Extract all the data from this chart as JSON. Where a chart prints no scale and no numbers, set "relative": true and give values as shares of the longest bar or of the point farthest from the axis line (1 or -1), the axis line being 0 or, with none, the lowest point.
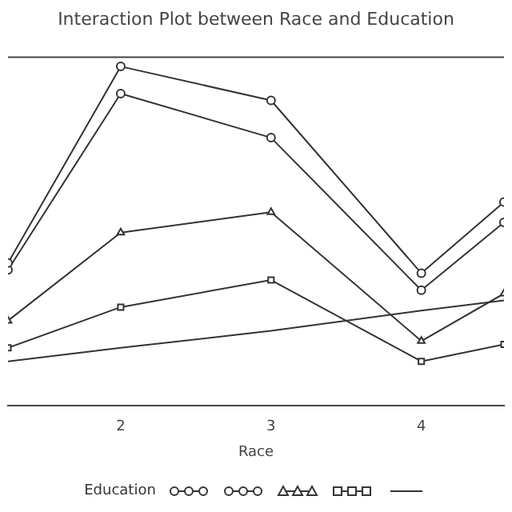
{
  "chart_data": {
    "type": "line",
    "title": "Interaction Plot between Race and Education",
    "xlabel": "Race",
    "legend_title": "Education",
    "relative": true,
    "line_style": "solid",
    "grid": false,
    "x": [
      1.25,
      2,
      3,
      4,
      4.55
    ],
    "xlim": [
      1.25,
      4.55
    ],
    "xticks": [
      2,
      3,
      4
    ],
    "series": [
      {
        "color": "#333333",
        "marker": "circle",
        "values": [
          0.42,
          1.0,
          0.9,
          0.39,
          0.6
        ]
      },
      {
        "color": "#333333",
        "marker": "circle",
        "values": [
          0.4,
          0.92,
          0.79,
          0.34,
          0.54
        ]
      },
      {
        "color": "#333333",
        "marker": "triangle",
        "values": [
          0.25,
          0.51,
          0.57,
          0.19,
          0.33
        ]
      },
      {
        "color": "#333333",
        "marker": "square",
        "values": [
          0.17,
          0.29,
          0.37,
          0.13,
          0.18
        ]
      },
      {
        "color": "#333333",
        "marker": "none",
        "values": [
          0.13,
          0.17,
          0.22,
          0.28,
          0.31
        ]
      }
    ]
  }
}
